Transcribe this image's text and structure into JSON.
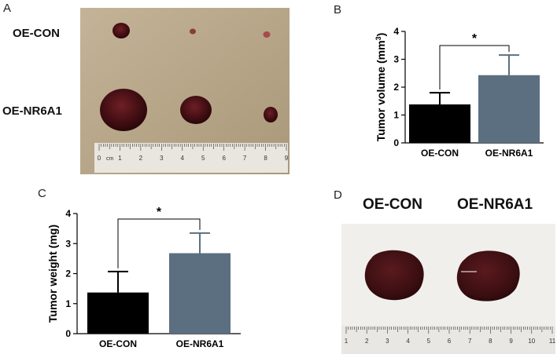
{
  "panels": {
    "a": {
      "letter": "A",
      "row_labels": [
        "OE-CON",
        "OE-NR6A1"
      ],
      "ruler_ticks": [
        "0",
        "1",
        "2",
        "3",
        "4",
        "5",
        "6",
        "7",
        "8",
        "9"
      ],
      "ruler_unit": "cm"
    },
    "b": {
      "letter": "B"
    },
    "c": {
      "letter": "C"
    },
    "d": {
      "letter": "D",
      "col_labels": [
        "OE-CON",
        "OE-NR6A1"
      ],
      "ruler_ticks": [
        "1",
        "2",
        "3",
        "4",
        "5",
        "6",
        "7",
        "8",
        "9",
        "10",
        "11"
      ]
    }
  },
  "colors": {
    "con_bar": "#000000",
    "nr6a1_bar": "#5b6f80",
    "photo_bg": "#b9a78a"
  },
  "chart_data": [
    {
      "type": "bar",
      "panel": "B",
      "categories": [
        "OE-CON",
        "OE-NR6A1"
      ],
      "values": [
        1.38,
        2.43
      ],
      "error_upper": [
        1.8,
        3.15
      ],
      "ylabel": "Tumor volume (mm",
      "ylabel_sup": "3",
      "ylabel_close": ")",
      "ylim": [
        0,
        4
      ],
      "yticks": [
        "0",
        "1",
        "2",
        "3",
        "4"
      ],
      "significance": "*"
    },
    {
      "type": "bar",
      "panel": "C",
      "categories": [
        "OE-CON",
        "OE-NR6A1"
      ],
      "values": [
        1.37,
        2.68
      ],
      "error_upper": [
        2.07,
        3.35
      ],
      "ylabel": "Tumor weight (mg)",
      "ylim": [
        0,
        4
      ],
      "yticks": [
        "0",
        "1",
        "2",
        "3",
        "4"
      ],
      "significance": "*"
    }
  ]
}
